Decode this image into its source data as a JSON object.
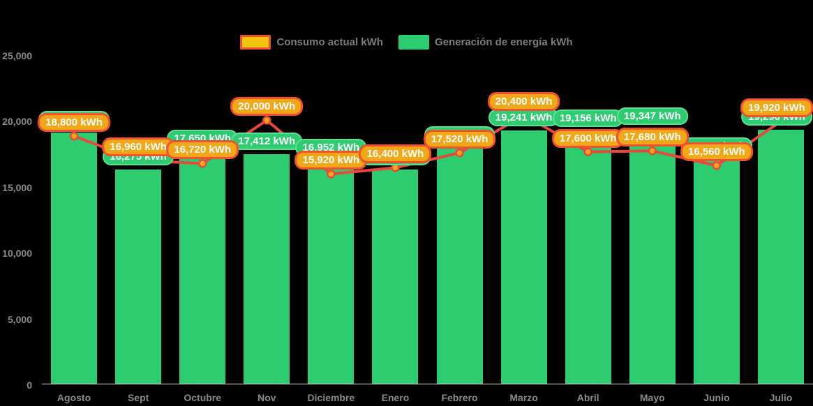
{
  "legend": {
    "consumo_label": "Consumo actual kWh",
    "generacion_label": "Generación de energía kWh"
  },
  "axes": {
    "y_tick_labels": [
      "0",
      "5,000",
      "10,000",
      "15,000",
      "20,000",
      "25,000"
    ],
    "y_tick_values": [
      0,
      5000,
      10000,
      15000,
      20000,
      25000
    ],
    "x_labels": [
      "Agosto",
      "Sept",
      "Octubre",
      "Nov",
      "Diciembre",
      "Enero",
      "Febrero",
      "Marzo",
      "Abril",
      "Mayo",
      "Junio",
      "Julio"
    ]
  },
  "chart_data": {
    "type": "combo-bar-line",
    "categories": [
      "Agosto",
      "Sept",
      "Octubre",
      "Nov",
      "Diciembre",
      "Enero",
      "Febrero",
      "Marzo",
      "Abril",
      "Mayo",
      "Junio",
      "Julio"
    ],
    "series": [
      {
        "name": "Generación de energía kWh",
        "type": "bar",
        "color": "#2ECC71",
        "values": [
          19078,
          16275,
          17650,
          17412,
          16952,
          16250,
          17903,
          19241,
          19156,
          19347,
          17056,
          19290
        ],
        "labels": [
          "19,078 kWh",
          "16,275 kWh",
          "17,650 kWh",
          "17,412 kWh",
          "16,952 kWh",
          "16,250 kWh",
          "17,903 kWh",
          "19,241 kWh",
          "19,156 kWh",
          "19,347 kWh",
          "17,056 kWh",
          "19,290 kWh"
        ]
      },
      {
        "name": "Consumo actual kWh",
        "type": "line",
        "color": "#E8493C",
        "point_fill": "#F2A716",
        "values": [
          18800,
          16960,
          16720,
          20000,
          15920,
          16400,
          17520,
          20400,
          17600,
          17680,
          16560,
          19920
        ],
        "labels": [
          "18,800 kWh",
          "16,960 kWh",
          "16,720 kWh",
          "20,000 kWh",
          "15,920 kWh",
          "16,400 kWh",
          "17,520 kWh",
          "20,400 kWh",
          "17,600 kWh",
          "17,680 kWh",
          "16,560 kWh",
          "19,920 kWh"
        ]
      }
    ],
    "ylim": [
      0,
      25000
    ],
    "grid": false,
    "legend_position": "top-center",
    "background": "#000000"
  }
}
